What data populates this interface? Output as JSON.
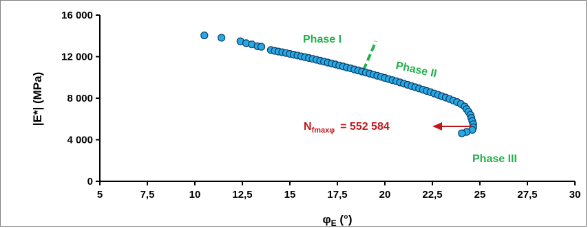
{
  "chart_data": {
    "type": "scatter",
    "title": "",
    "xlabel_main": "φ",
    "xlabel_sub": "E",
    "xlabel_unit": " (°)",
    "ylabel": "|E*| (MPa)",
    "xlim": [
      5,
      30
    ],
    "ylim": [
      0,
      16000
    ],
    "x_ticks": [
      "5",
      "7,5",
      "10",
      "12,5",
      "15",
      "17,5",
      "20",
      "22,5",
      "25",
      "27,5",
      "30"
    ],
    "x_tick_values": [
      5,
      7.5,
      10,
      12.5,
      15,
      17.5,
      20,
      22.5,
      25,
      27.5,
      30
    ],
    "y_ticks": [
      "0",
      "4 000",
      "8 000",
      "12 000",
      "16 000"
    ],
    "y_tick_values": [
      0,
      4000,
      8000,
      12000,
      16000
    ],
    "grid": false,
    "marker_color": "#29a9e0",
    "marker_edge": "#0a3d6b",
    "points": [
      [
        10.5,
        14050
      ],
      [
        11.4,
        13820
      ],
      [
        12.4,
        13480
      ],
      [
        12.7,
        13300
      ],
      [
        13.0,
        13180
      ],
      [
        13.3,
        13000
      ],
      [
        13.5,
        12950
      ],
      [
        14.0,
        12640
      ],
      [
        14.2,
        12560
      ],
      [
        14.4,
        12490
      ],
      [
        14.6,
        12420
      ],
      [
        14.8,
        12350
      ],
      [
        15.0,
        12270
      ],
      [
        15.2,
        12190
      ],
      [
        15.4,
        12110
      ],
      [
        15.6,
        12030
      ],
      [
        15.8,
        11950
      ],
      [
        16.0,
        11870
      ],
      [
        16.2,
        11790
      ],
      [
        16.4,
        11700
      ],
      [
        16.6,
        11610
      ],
      [
        16.8,
        11520
      ],
      [
        17.0,
        11430
      ],
      [
        17.2,
        11340
      ],
      [
        17.4,
        11250
      ],
      [
        17.6,
        11150
      ],
      [
        17.8,
        11060
      ],
      [
        18.0,
        10960
      ],
      [
        18.2,
        10870
      ],
      [
        18.4,
        10770
      ],
      [
        18.6,
        10670
      ],
      [
        18.8,
        10570
      ],
      [
        19.0,
        10470
      ],
      [
        19.2,
        10370
      ],
      [
        19.4,
        10270
      ],
      [
        19.6,
        10160
      ],
      [
        19.8,
        10060
      ],
      [
        20.0,
        9950
      ],
      [
        20.2,
        9840
      ],
      [
        20.4,
        9740
      ],
      [
        20.6,
        9630
      ],
      [
        20.8,
        9520
      ],
      [
        21.0,
        9400
      ],
      [
        21.2,
        9290
      ],
      [
        21.4,
        9170
      ],
      [
        21.6,
        9060
      ],
      [
        21.8,
        8940
      ],
      [
        22.0,
        8820
      ],
      [
        22.2,
        8700
      ],
      [
        22.4,
        8580
      ],
      [
        22.6,
        8450
      ],
      [
        22.8,
        8320
      ],
      [
        23.0,
        8190
      ],
      [
        23.2,
        8060
      ],
      [
        23.4,
        7920
      ],
      [
        23.6,
        7780
      ],
      [
        23.8,
        7630
      ],
      [
        24.0,
        7450
      ],
      [
        24.2,
        7200
      ],
      [
        24.3,
        6950
      ],
      [
        24.4,
        6700
      ],
      [
        24.5,
        6400
      ],
      [
        24.55,
        6100
      ],
      [
        24.6,
        5800
      ],
      [
        24.65,
        5500
      ],
      [
        24.65,
        5200
      ],
      [
        24.6,
        4950
      ],
      [
        24.3,
        4750
      ],
      [
        24.05,
        4620
      ]
    ],
    "annotations": {
      "phase1": "Phase I",
      "phase2": "Phase II",
      "phase3": "Phase III",
      "n_main": "N",
      "n_sub": "fmaxφ",
      "n_value": "=  552 584",
      "phase_color": "#22b14c",
      "arrow_color": "#c0171d"
    }
  }
}
